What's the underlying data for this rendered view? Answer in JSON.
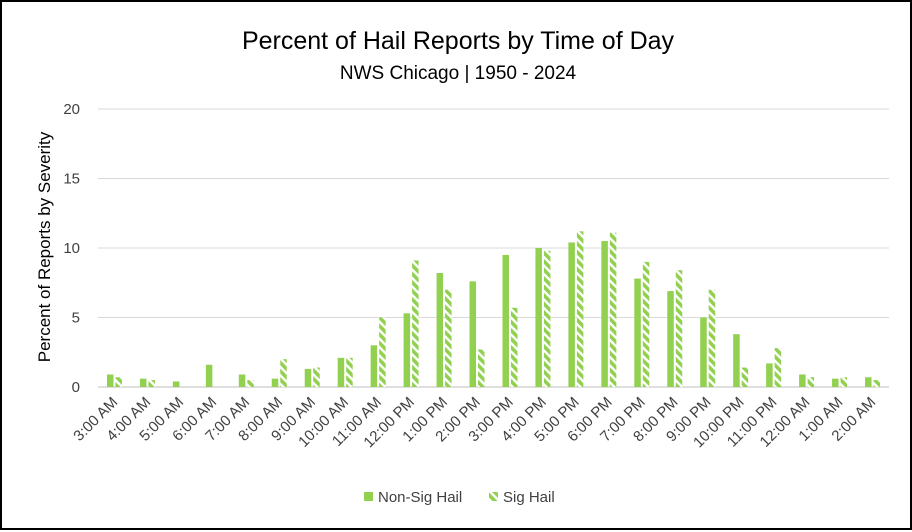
{
  "chart_data": {
    "type": "bar",
    "title": "Percent of Hail Reports by Time of Day",
    "subtitle": "NWS Chicago | 1950 - 2024",
    "xlabel": "",
    "ylabel": "Percent of Reports by Severity",
    "ylim": [
      0,
      20
    ],
    "yticks": [
      0,
      5,
      10,
      15,
      20
    ],
    "grid": true,
    "legend_position": "bottom",
    "categories": [
      "3:00 AM",
      "4:00 AM",
      "5:00 AM",
      "6:00 AM",
      "7:00 AM",
      "8:00 AM",
      "9:00 AM",
      "10:00 AM",
      "11:00 AM",
      "12:00 PM",
      "1:00 PM",
      "2:00 PM",
      "3:00 PM",
      "4:00 PM",
      "5:00 PM",
      "6:00 PM",
      "7:00 PM",
      "8:00 PM",
      "9:00 PM",
      "10:00 PM",
      "11:00 PM",
      "12:00 AM",
      "1:00 AM",
      "2:00 AM"
    ],
    "series": [
      {
        "name": "Non-Sig Hail",
        "color": "#92D050",
        "pattern": "solid",
        "values": [
          0.9,
          0.6,
          0.4,
          1.6,
          0.9,
          0.6,
          1.3,
          2.1,
          3.0,
          5.3,
          8.2,
          7.6,
          9.5,
          10.0,
          10.4,
          10.5,
          7.8,
          6.9,
          5.0,
          3.8,
          1.7,
          0.9,
          0.6,
          0.7
        ]
      },
      {
        "name": "Sig Hail",
        "color": "#92D050",
        "pattern": "striped",
        "values": [
          0.7,
          0.5,
          0.0,
          0.0,
          0.5,
          2.0,
          1.4,
          2.1,
          5.0,
          9.1,
          7.0,
          2.7,
          5.7,
          9.8,
          11.2,
          11.1,
          9.0,
          8.4,
          7.0,
          1.4,
          2.8,
          0.7,
          0.7,
          0.5
        ]
      }
    ]
  }
}
